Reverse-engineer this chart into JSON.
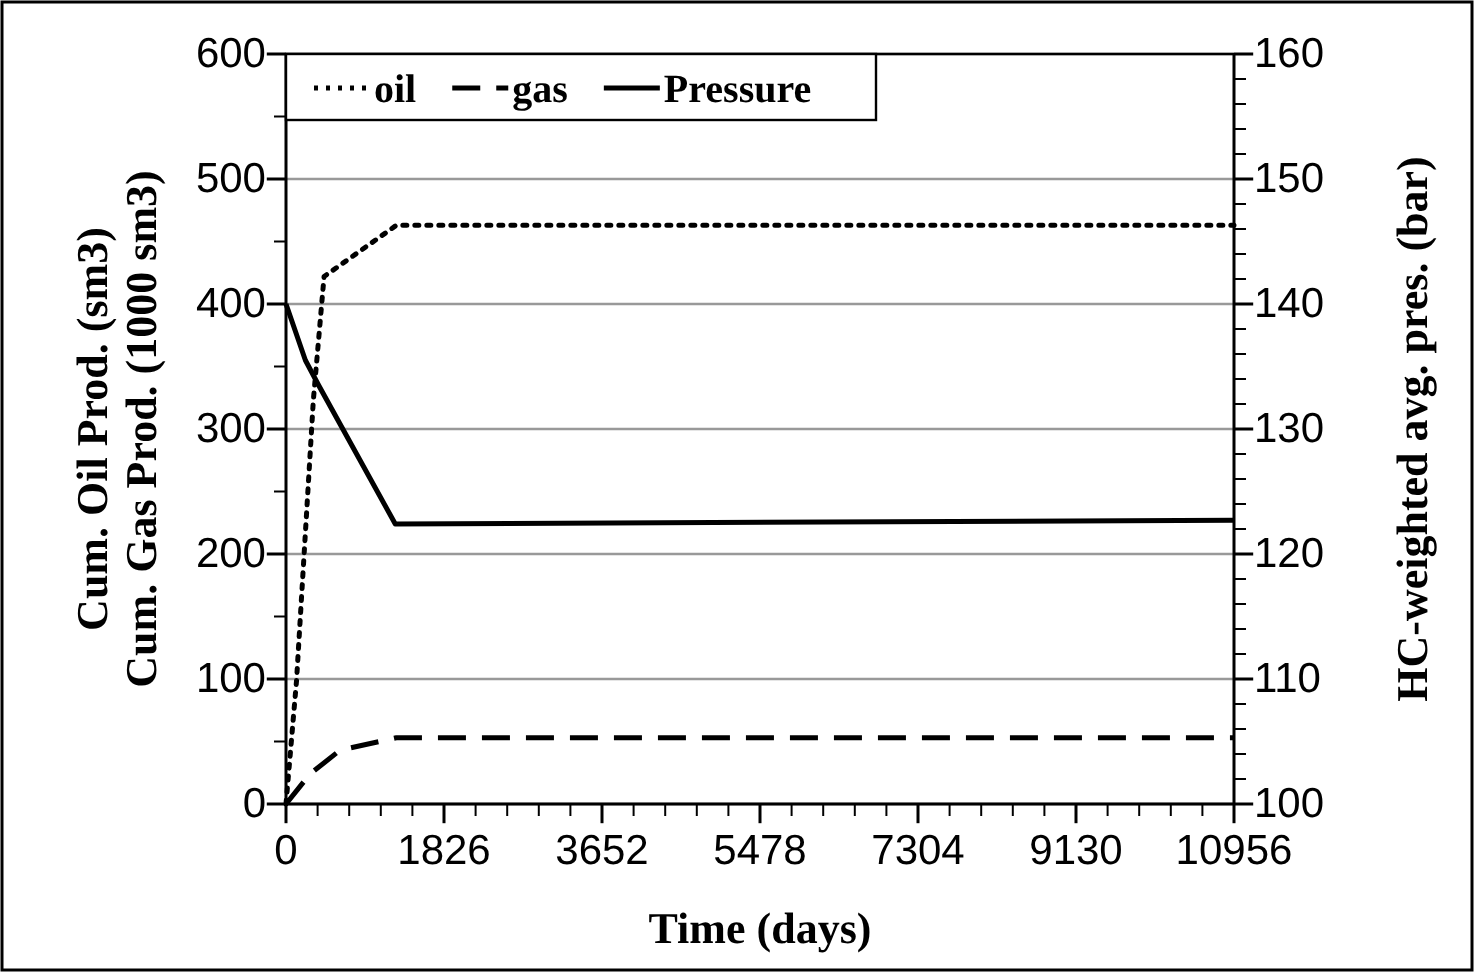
{
  "chart_data": {
    "type": "line",
    "xlabel": "Time (days)",
    "ylabel": "Cum. Oil Prod. (sm3)\nCum. Gas Prod. (1000 sm3)",
    "y2label": "HC-weighted avg. pres. (bar)",
    "xlim": [
      0,
      10956
    ],
    "xticks": [
      0,
      {
        "value": 365.2,
        "label": null
      },
      {
        "value": 730.4,
        "label": null
      },
      {
        "value": 1095.6,
        "label": null
      },
      {
        "value": 1460.8,
        "label": null
      },
      1826,
      {
        "value": 2191.2,
        "label": null
      },
      {
        "value": 2556.4,
        "label": null
      },
      {
        "value": 2921.6,
        "label": null
      },
      {
        "value": 3286.8,
        "label": null
      },
      3652,
      {
        "value": 4017.2,
        "label": null
      },
      {
        "value": 4382.4,
        "label": null
      },
      {
        "value": 4747.6,
        "label": null
      },
      {
        "value": 5112.8,
        "label": null
      },
      5478,
      {
        "value": 5843.2,
        "label": null
      },
      {
        "value": 6208.4,
        "label": null
      },
      {
        "value": 6573.6,
        "label": null
      },
      {
        "value": 6938.8,
        "label": null
      },
      7304,
      {
        "value": 7669.2,
        "label": null
      },
      {
        "value": 8034.4,
        "label": null
      },
      {
        "value": 8399.6,
        "label": null
      },
      {
        "value": 8764.8,
        "label": null
      },
      9130,
      {
        "value": 9495.2,
        "label": null
      },
      {
        "value": 9860.4,
        "label": null
      },
      {
        "value": 10225.6,
        "label": null
      },
      {
        "value": 10590.8,
        "label": null
      },
      10956
    ],
    "ylim": [
      0,
      600
    ],
    "yticks": [
      0,
      {
        "value": 50,
        "label": null
      },
      100,
      {
        "value": 150,
        "label": null
      },
      200,
      {
        "value": 250,
        "label": null
      },
      300,
      {
        "value": 350,
        "label": null
      },
      400,
      {
        "value": 450,
        "label": null
      },
      500,
      {
        "value": 550,
        "label": null
      },
      600
    ],
    "y2lim": [
      100,
      160
    ],
    "y2ticks": [
      100,
      {
        "value": 102,
        "label": null
      },
      {
        "value": 104,
        "label": null
      },
      {
        "value": 106,
        "label": null
      },
      {
        "value": 108,
        "label": null
      },
      110,
      {
        "value": 112,
        "label": null
      },
      {
        "value": 114,
        "label": null
      },
      {
        "value": 116,
        "label": null
      },
      {
        "value": 118,
        "label": null
      },
      120,
      {
        "value": 122,
        "label": null
      },
      {
        "value": 124,
        "label": null
      },
      {
        "value": 126,
        "label": null
      },
      {
        "value": 128,
        "label": null
      },
      130,
      {
        "value": 132,
        "label": null
      },
      {
        "value": 134,
        "label": null
      },
      {
        "value": 136,
        "label": null
      },
      {
        "value": 138,
        "label": null
      },
      140,
      {
        "value": 142,
        "label": null
      },
      {
        "value": 144,
        "label": null
      },
      {
        "value": 146,
        "label": null
      },
      {
        "value": 148,
        "label": null
      },
      150,
      {
        "value": 152,
        "label": null
      },
      {
        "value": 154,
        "label": null
      },
      {
        "value": 156,
        "label": null
      },
      {
        "value": 158,
        "label": null
      },
      160
    ],
    "grid": "y",
    "legend": "top left",
    "marker": "none",
    "series": [
      {
        "name": "oil",
        "color": "#000000",
        "line_style": "dotted",
        "x": [
          0,
          122,
          316,
          440,
          1276,
          10956
        ],
        "values": [
          0,
          99,
          323,
          422,
          463,
          463
        ]
      },
      {
        "name": "gas",
        "color": "#000000",
        "line_style": "dashed",
        "x": [
          0,
          277,
          624,
          1276,
          10956
        ],
        "values": [
          0,
          24,
          43,
          53,
          53
        ]
      },
      {
        "name": "Pressure",
        "color": "#000000",
        "line_style": "solid",
        "axis": "y2",
        "x": [
          0,
          224,
          377,
          1263,
          10956
        ],
        "values": [
          140,
          135.5,
          133.5,
          122.4,
          122.7
        ]
      }
    ]
  }
}
